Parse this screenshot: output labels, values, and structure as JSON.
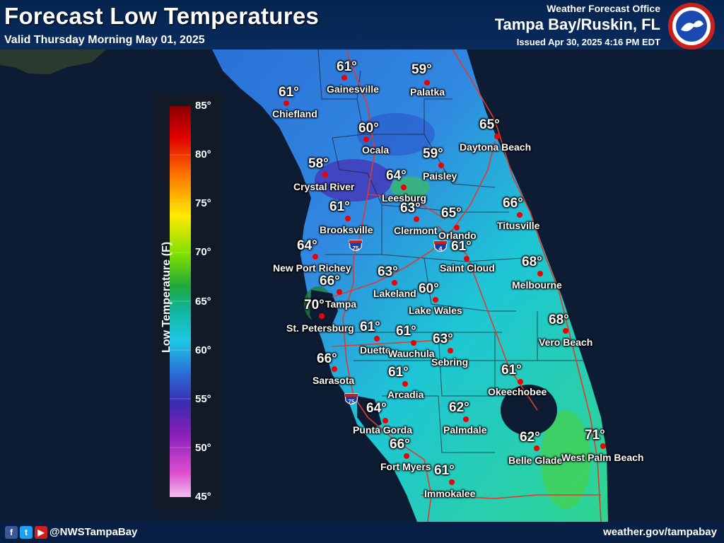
{
  "header": {
    "title": "Forecast Low Temperatures",
    "subtitle": "Valid Thursday Morning May 01, 2025",
    "office": "Weather Forecast Office",
    "region": "Tampa Bay/Ruskin, FL",
    "issued": "Issued Apr 30, 2025 4:16 PM EDT",
    "logo_text": "NATIONAL WEATHER SERVICE"
  },
  "footer": {
    "handle": "@NWSTampaBay",
    "website": "weather.gov/tampabay",
    "social_icons": [
      "facebook-icon",
      "twitter-icon",
      "youtube-icon"
    ]
  },
  "legend": {
    "title": "Low Temperature (F)",
    "ticks": [
      "85°",
      "80°",
      "75°",
      "70°",
      "65°",
      "60°",
      "55°",
      "50°",
      "45°"
    ],
    "range": [
      45,
      85
    ]
  },
  "interstates": [
    {
      "label": "75"
    },
    {
      "label": "4"
    },
    {
      "label": "75"
    }
  ],
  "colors": {
    "land_cool": "#2f74d6",
    "land_mid": "#1fc3d8",
    "land_warm": "#3fd56f",
    "water": "#0d1c33",
    "city_dot": "#e00000",
    "road": "#e03a2a"
  },
  "cities": [
    {
      "name": "Gainesville",
      "temp": "61°"
    },
    {
      "name": "Palatka",
      "temp": "59°"
    },
    {
      "name": "Chiefland",
      "temp": "61°"
    },
    {
      "name": "Ocala",
      "temp": "60°"
    },
    {
      "name": "Daytona Beach",
      "temp": "65°"
    },
    {
      "name": "Paisley",
      "temp": "59°"
    },
    {
      "name": "Crystal River",
      "temp": "58°"
    },
    {
      "name": "Leesburg",
      "temp": "64°"
    },
    {
      "name": "Clermont",
      "temp": "63°"
    },
    {
      "name": "Orlando",
      "temp": "65°"
    },
    {
      "name": "Titusville",
      "temp": "66°"
    },
    {
      "name": "Brooksville",
      "temp": "61°"
    },
    {
      "name": "New Port Richey",
      "temp": "64°"
    },
    {
      "name": "Saint Cloud",
      "temp": "61°"
    },
    {
      "name": "Melbourne",
      "temp": "68°"
    },
    {
      "name": "Lakeland",
      "temp": "63°"
    },
    {
      "name": "Tampa",
      "temp": "66°"
    },
    {
      "name": "Lake Wales",
      "temp": "60°"
    },
    {
      "name": "St. Petersburg",
      "temp": "70°"
    },
    {
      "name": "Vero Beach",
      "temp": "68°"
    },
    {
      "name": "Duette",
      "temp": "61°"
    },
    {
      "name": "Wauchula",
      "temp": "61°"
    },
    {
      "name": "Sebring",
      "temp": "63°"
    },
    {
      "name": "Sarasota",
      "temp": "66°"
    },
    {
      "name": "Okeechobee",
      "temp": "61°"
    },
    {
      "name": "Arcadia",
      "temp": "61°"
    },
    {
      "name": "Palmdale",
      "temp": "62°"
    },
    {
      "name": "Punta Gorda",
      "temp": "64°"
    },
    {
      "name": "Belle Glade",
      "temp": "62°"
    },
    {
      "name": "West Palm Beach",
      "temp": "71°"
    },
    {
      "name": "Fort Myers",
      "temp": "66°"
    },
    {
      "name": "Immokalee",
      "temp": "61°"
    }
  ]
}
